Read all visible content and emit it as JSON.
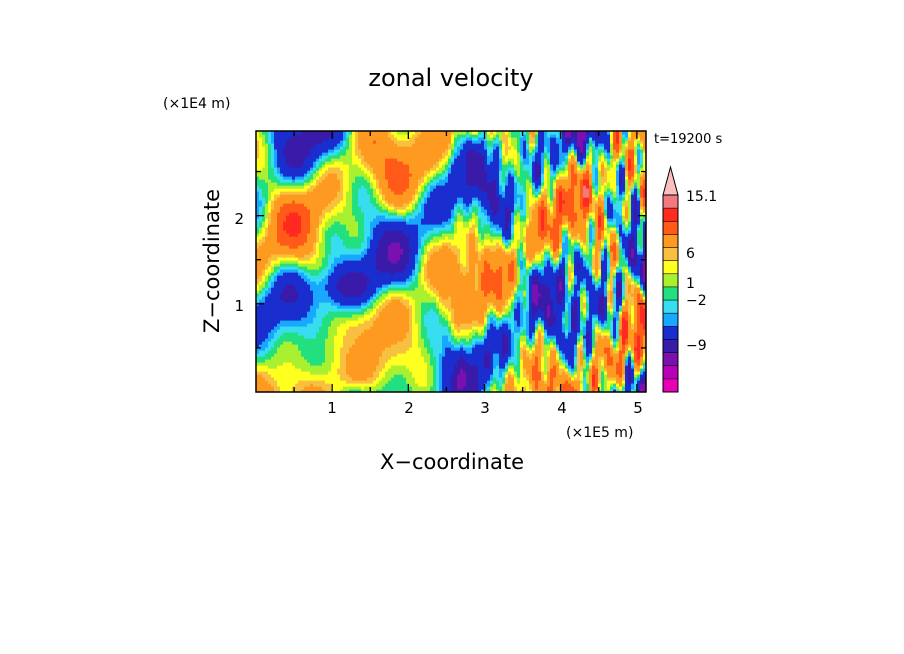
{
  "chart_data": {
    "type": "heatmap",
    "title": "zonal velocity",
    "xlabel": "X−coordinate",
    "ylabel": "Z−coordinate",
    "x_unit": "(×1E5 m)",
    "y_unit": "(×1E4 m)",
    "time_label": "t=19200 s",
    "xlim": [
      0,
      5.12
    ],
    "ylim": [
      0,
      2.96
    ],
    "x_ticks": [
      "1",
      "2",
      "3",
      "4",
      "5"
    ],
    "y_ticks": [
      "1",
      "2"
    ],
    "colorbar": {
      "levels": [
        -15,
        -12,
        -9,
        -6,
        -3,
        -2,
        -1,
        0,
        1,
        2,
        3,
        6,
        9,
        12,
        15.1
      ],
      "labels": [
        "15.1",
        "6",
        "1",
        "−2",
        "−9"
      ],
      "colors": [
        "#e800b4",
        "#b800b8",
        "#7a10b0",
        "#3a1aa8",
        "#1a2ed0",
        "#18a8ff",
        "#38ddf0",
        "#22e080",
        "#a8f030",
        "#ffff20",
        "#f8c040",
        "#ff9a20",
        "#ff5a18",
        "#ff2a20",
        "#f07a80",
        "#f8c0c0"
      ]
    }
  }
}
